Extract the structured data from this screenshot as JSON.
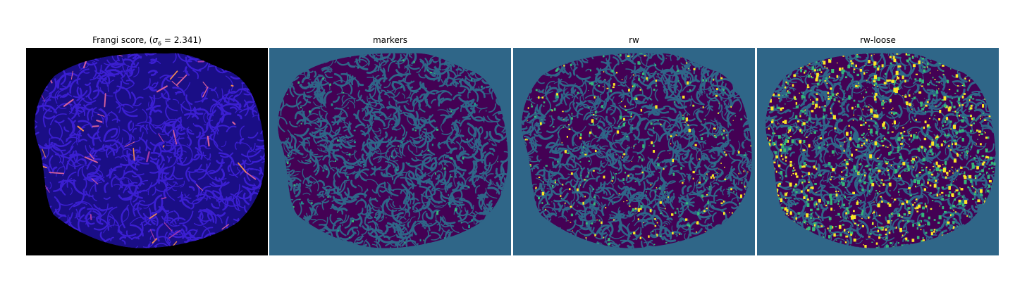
{
  "panels": [
    {
      "id": "frangi",
      "title_prefix": "Frangi score, (",
      "title_symbol": "σ",
      "title_subscript": "6",
      "title_suffix": " = 2.341)",
      "title": "Frangi score, (σ6 = 2.341)",
      "colormap": "plasma-like",
      "background": "#000000",
      "base": "#1a0e86",
      "vessel": "#3b1fd1",
      "highlights": [
        "#a63aa8",
        "#d6609b",
        "#f08a52"
      ]
    },
    {
      "id": "markers",
      "title": "markers",
      "colormap": "viridis",
      "background": "#2f6688",
      "base": "#440154",
      "vessel": "#2f6688",
      "highlights": [
        "#21918c",
        "#35b779"
      ]
    },
    {
      "id": "rw",
      "title": "rw",
      "colormap": "viridis",
      "background": "#2f6688",
      "base": "#440154",
      "vessel": "#2f6688",
      "highlights": [
        "#35b779",
        "#fde725"
      ]
    },
    {
      "id": "rw-loose",
      "title": "rw-loose",
      "colormap": "viridis",
      "background": "#2f6688",
      "base": "#440154",
      "vessel": "#2f6688",
      "highlights": [
        "#fde725",
        "#35b779"
      ]
    }
  ]
}
